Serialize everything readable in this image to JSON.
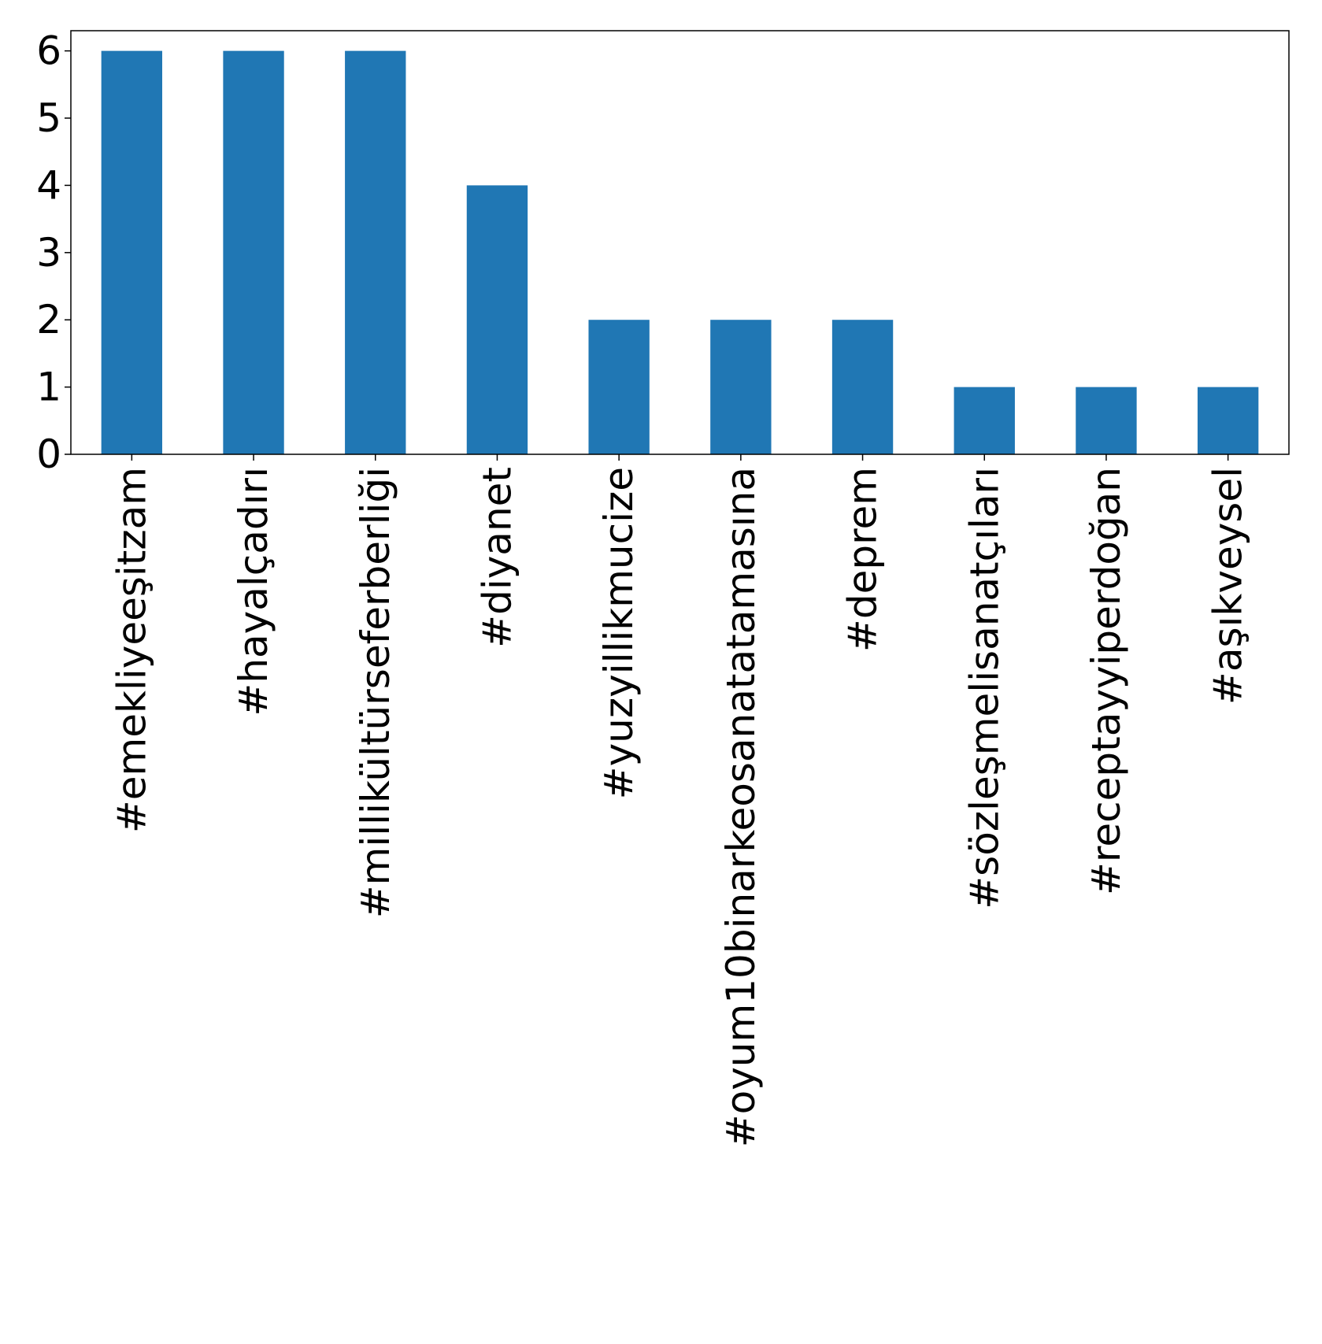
{
  "chart_data": {
    "type": "bar",
    "title": "",
    "xlabel": "",
    "ylabel": "",
    "categories": [
      "#emekliyeeşitzam",
      "#hayalçadırı",
      "#millikültürseferberliği",
      "#diyanet",
      "#yuzyillikmucize",
      "#oyum10binarkeosanatatamasına",
      "#deprem",
      "#sözleşmelisanatçıları",
      "#receptayyiperdoğan",
      "#aşıkveysel"
    ],
    "values": [
      6,
      6,
      6,
      4,
      2,
      2,
      2,
      1,
      1,
      1
    ],
    "ylim": [
      0,
      6.3
    ],
    "yticks": [
      0,
      1,
      2,
      3,
      4,
      5,
      6
    ],
    "grid": false,
    "legend": "none",
    "bar_color": "#2077b4"
  }
}
